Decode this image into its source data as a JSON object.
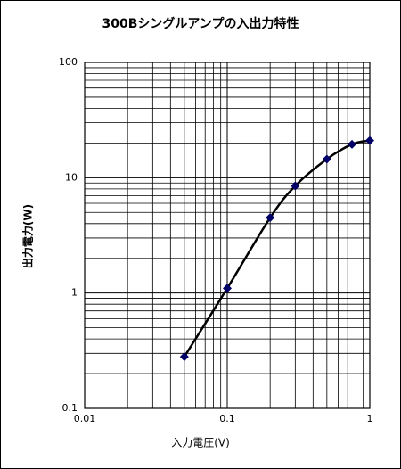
{
  "chart_data": {
    "type": "line",
    "title": "300Bシングルアンプの入出力特性",
    "x_label": "入力電圧(V)",
    "y_label": "出力電力(W)",
    "x": [
      0.05,
      0.1,
      0.2,
      0.3,
      0.5,
      0.75,
      1.0
    ],
    "values": [
      0.28,
      1.1,
      4.5,
      8.5,
      14.5,
      19.5,
      21
    ],
    "color": "#000066",
    "xscale": "log",
    "yscale": "log",
    "xlim": [
      0.01,
      1
    ],
    "ylim": [
      0.1,
      100
    ],
    "xticks": [
      0.01,
      0.1,
      1
    ],
    "yticks": [
      0.1,
      1,
      10,
      100
    ],
    "grid": true
  }
}
